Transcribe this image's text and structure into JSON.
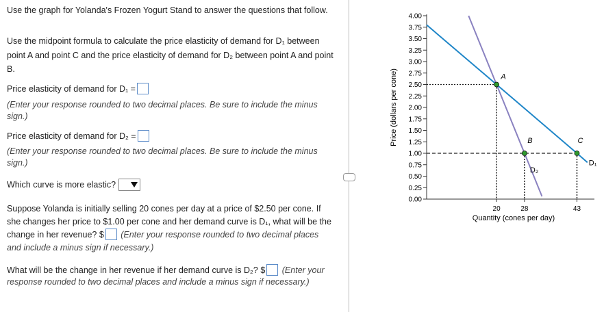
{
  "intro": "Use the graph for Yolanda's Frozen Yogurt Stand to answer the questions that follow.",
  "instructions": "Use the midpoint formula to calculate the price elasticity of demand for D₁ between point A and point C and the price elasticity of demand for D₂ between point A and point B.",
  "q1": {
    "label": "Price elasticity of demand for D₁ =",
    "hint": "(Enter your response rounded to two decimal places. Be sure to include the minus sign.)"
  },
  "q2": {
    "label": "Price elasticity of demand for D₂ =",
    "hint": "(Enter your response rounded to two decimal places. Be sure to include the minus sign.)"
  },
  "q3": {
    "label": "Which curve is more elastic?"
  },
  "q4": {
    "label": "Suppose Yolanda is initially selling 20 cones per day at a price of $2.50 per cone. If she changes her price to $1.00 per cone and her demand curve is D₁, what will be the change in her revenue? $",
    "hint": "(Enter your response rounded to two decimal places and include a minus sign if necessary.)"
  },
  "q5": {
    "label": "What will be the change in her revenue if her demand curve is D₂? $",
    "hint": "(Enter your response rounded to two decimal places and include a minus sign if necessary.)"
  },
  "chart_data": {
    "type": "line",
    "x_label": "Quantity (cones per day)",
    "y_label": "Price (dollars per cone)",
    "xlim": [
      0,
      48
    ],
    "ylim": [
      0,
      4
    ],
    "xticks": [
      20,
      28,
      43
    ],
    "yticks": [
      {
        "value": 0,
        "label": "0.00"
      },
      {
        "value": 0.25,
        "label": "0.25"
      },
      {
        "value": 0.5,
        "label": "0.50"
      },
      {
        "value": 0.75,
        "label": "0.75"
      },
      {
        "value": 1,
        "label": "1.00"
      },
      {
        "value": 1.25,
        "label": "1.25"
      },
      {
        "value": 1.5,
        "label": "1.50"
      },
      {
        "value": 1.75,
        "label": "1.75"
      },
      {
        "value": 2,
        "label": "2.00"
      },
      {
        "value": 2.25,
        "label": "2.25"
      },
      {
        "value": 2.5,
        "label": "2.50"
      },
      {
        "value": 2.75,
        "label": "2.75"
      },
      {
        "value": 3,
        "label": "3.00"
      },
      {
        "value": 3.25,
        "label": "3.25"
      },
      {
        "value": 3.5,
        "label": "3.50"
      },
      {
        "value": 3.75,
        "label": "3.75"
      },
      {
        "value": 4,
        "label": "4.00"
      }
    ],
    "series": [
      {
        "name": "D₁",
        "color": "#1f86c8",
        "x": [
          0,
          20,
          43,
          46
        ],
        "values": [
          3.8,
          2.5,
          1.0,
          0.8
        ]
      },
      {
        "name": "D₂",
        "color": "#8a82c0",
        "x": [
          12,
          20,
          28,
          33
        ],
        "values": [
          4.0,
          2.5,
          1.0,
          0.06
        ]
      }
    ],
    "points": [
      {
        "label": "A",
        "x": 20,
        "y": 2.5,
        "color": "#2e9a2e"
      },
      {
        "label": "B",
        "x": 28,
        "y": 1.0,
        "color": "#2e9a2e"
      },
      {
        "label": "C",
        "x": 43,
        "y": 1.0,
        "color": "#2e9a2e"
      }
    ]
  }
}
